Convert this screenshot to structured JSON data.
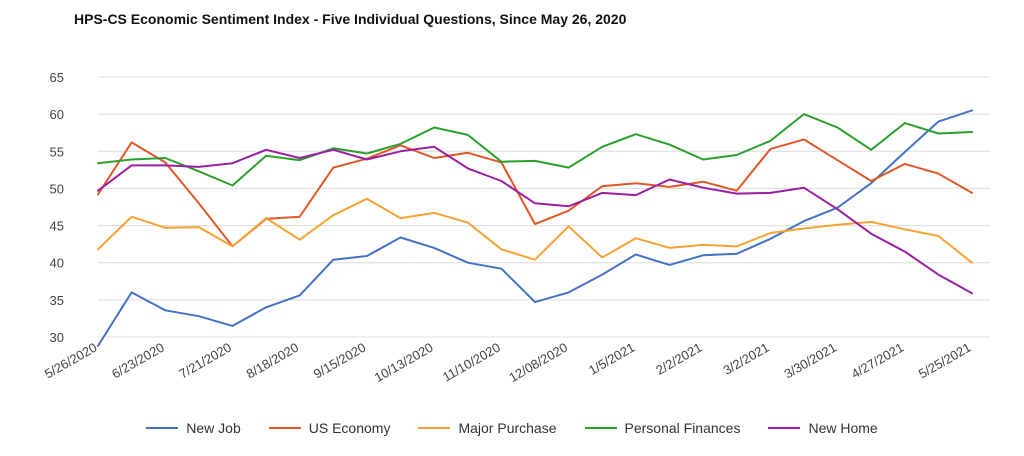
{
  "chart_data": {
    "type": "line",
    "title": "HPS-CS Economic Sentiment Index - Five Individual Questions, Since May 26, 2020",
    "xlabel": "",
    "ylabel": "",
    "ylim": [
      30,
      65
    ],
    "yticks": [
      "30",
      "35",
      "40",
      "45",
      "50",
      "55",
      "60",
      "65"
    ],
    "grid": true,
    "legend_position": "bottom",
    "x": [
      "5/26/2020",
      "6/9/2020",
      "6/23/2020",
      "7/7/2020",
      "7/21/2020",
      "8/4/2020",
      "8/18/2020",
      "9/1/2020",
      "9/15/2020",
      "9/29/2020",
      "10/13/2020",
      "10/27/2020",
      "11/10/2020",
      "11/24/2020",
      "12/08/2020",
      "12/22/2020",
      "1/5/2021",
      "1/19/2021",
      "2/2/2021",
      "2/16/2021",
      "3/2/2021",
      "3/16/2021",
      "3/30/2021",
      "4/13/2021",
      "4/27/2021",
      "5/11/2021",
      "5/25/2021"
    ],
    "xtick_labels": [
      "5/26/2020",
      "6/23/2020",
      "7/21/2020",
      "8/18/2020",
      "9/15/2020",
      "10/13/2020",
      "11/10/2020",
      "12/08/2020",
      "1/5/2021",
      "2/2/2021",
      "3/2/2021",
      "3/30/2021",
      "4/27/2021",
      "5/25/2021"
    ],
    "series": [
      {
        "name": "New Job",
        "color": "#4472c4",
        "values": [
          28.8,
          36.0,
          33.6,
          32.8,
          31.5,
          34.0,
          35.6,
          40.4,
          40.9,
          43.4,
          42.0,
          40.0,
          39.2,
          34.7,
          36.0,
          38.4,
          41.1,
          39.7,
          41.0,
          41.2,
          43.2,
          45.6,
          47.4,
          50.7,
          54.9,
          59.0,
          60.5
        ]
      },
      {
        "name": "US Economy",
        "color": "#e0582a",
        "values": [
          49.2,
          56.2,
          53.5,
          48.0,
          42.2,
          45.9,
          46.2,
          52.8,
          54.0,
          55.8,
          54.1,
          54.8,
          53.5,
          45.2,
          47.0,
          50.3,
          50.7,
          50.2,
          50.9,
          49.7,
          55.3,
          56.6,
          53.8,
          51.0,
          53.3,
          52.0,
          49.4
        ]
      },
      {
        "name": "Major Purchase",
        "color": "#f8a233",
        "values": [
          41.8,
          46.2,
          44.7,
          44.8,
          42.2,
          46.0,
          43.1,
          46.4,
          48.6,
          46.0,
          46.7,
          45.4,
          41.8,
          40.4,
          44.9,
          40.7,
          43.3,
          42.0,
          42.4,
          42.2,
          44.0,
          44.6,
          45.1,
          45.5,
          44.5,
          43.6,
          40.0
        ]
      },
      {
        "name": "Personal Finances",
        "color": "#2ca02c",
        "values": [
          53.4,
          53.9,
          54.1,
          52.3,
          50.4,
          54.4,
          53.8,
          55.4,
          54.7,
          56.0,
          58.2,
          57.2,
          53.6,
          53.7,
          52.8,
          55.6,
          57.3,
          55.9,
          53.9,
          54.5,
          56.4,
          60.0,
          58.2,
          55.2,
          58.8,
          57.4,
          57.6
        ]
      },
      {
        "name": "New Home",
        "color": "#9c1ea3",
        "values": [
          49.7,
          53.1,
          53.1,
          52.9,
          53.4,
          55.2,
          54.1,
          55.2,
          53.9,
          55.0,
          55.6,
          52.7,
          51.0,
          48.0,
          47.6,
          49.4,
          49.1,
          51.2,
          50.1,
          49.3,
          49.4,
          50.1,
          47.2,
          43.9,
          41.5,
          38.4,
          35.9
        ]
      }
    ]
  }
}
